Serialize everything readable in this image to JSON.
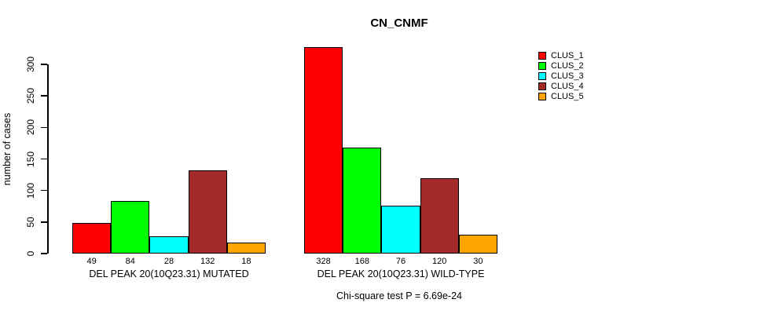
{
  "figure": {
    "title": "CN_CNMF",
    "annotation": "Chi-square test P = 6.69e-24"
  },
  "chart_data": {
    "type": "bar",
    "title": "CN_CNMF",
    "xlabel": "",
    "ylabel": "number of cases",
    "ylim": [
      0,
      300
    ],
    "yticks": [
      0,
      50,
      100,
      150,
      200,
      250,
      300
    ],
    "grid": false,
    "legend_position": "right",
    "bar_value_labels": true,
    "series_names": [
      "CLUS_1",
      "CLUS_2",
      "CLUS_3",
      "CLUS_4",
      "CLUS_5"
    ],
    "series_colors": [
      "#ff0000",
      "#00ff00",
      "#00ffff",
      "#a52a2a",
      "#ffa500"
    ],
    "groups": [
      {
        "label": "DEL PEAK 20(10Q23.31) MUTATED",
        "values": [
          49,
          84,
          28,
          132,
          18
        ]
      },
      {
        "label": "DEL PEAK 20(10Q23.31) WILD-TYPE",
        "values": [
          328,
          168,
          76,
          120,
          30
        ]
      }
    ],
    "annotation": "Chi-square test P = 6.69e-24",
    "colors": {
      "axis": "#000000",
      "background": "#ffffff",
      "bar_border": "#000000",
      "text": "#000000"
    }
  }
}
